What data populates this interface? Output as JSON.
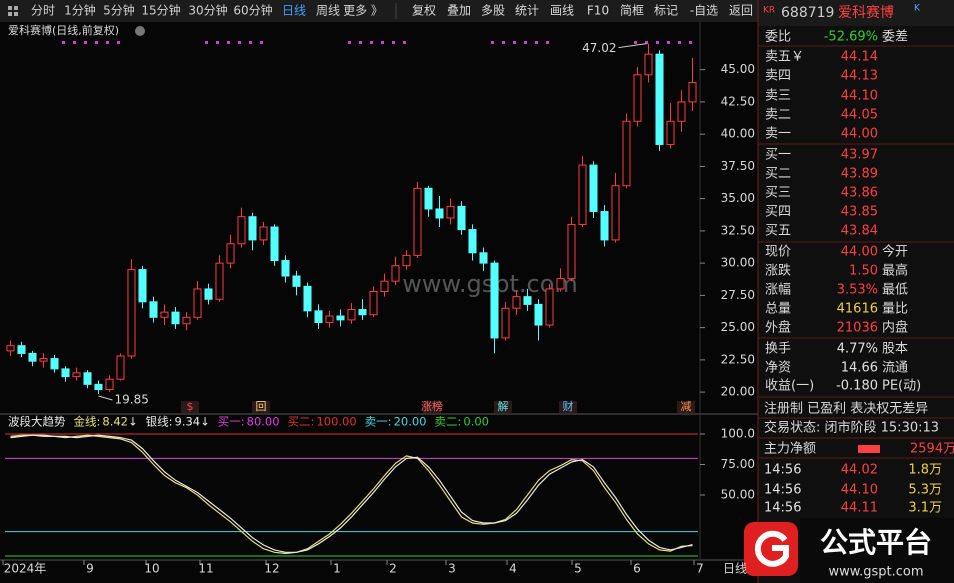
{
  "toolbar": {
    "periods": [
      "分时",
      "1分钟",
      "5分钟",
      "15分钟",
      "30分钟",
      "60分钟",
      "日线",
      "周线",
      "更多 》"
    ],
    "tools": [
      "复权",
      "叠加",
      "多股",
      "统计",
      "画线",
      "F10",
      "简框",
      "标记",
      "-自选",
      "返回"
    ]
  },
  "chart_data": [
    {
      "type": "candlestick",
      "title": "爱科赛博(日线,前复权)",
      "watermark": "www.gspt.com",
      "up_color": "#ff3c3c",
      "down_color": "#54ffff",
      "ohlc": [
        [
          23.2,
          23.6,
          22.8,
          24.0
        ],
        [
          23.6,
          23.0,
          22.7,
          23.9
        ],
        [
          23.0,
          22.4,
          22.0,
          23.2
        ],
        [
          22.4,
          22.6,
          21.9,
          23.0
        ],
        [
          22.6,
          21.8,
          21.5,
          22.9
        ],
        [
          21.8,
          21.2,
          20.8,
          22.0
        ],
        [
          21.2,
          21.5,
          20.9,
          21.9
        ],
        [
          21.5,
          20.6,
          20.3,
          21.7
        ],
        [
          20.6,
          20.2,
          19.85,
          20.9
        ],
        [
          20.2,
          21.0,
          20.0,
          21.3
        ],
        [
          21.0,
          22.8,
          20.9,
          23.0
        ],
        [
          22.8,
          29.5,
          22.6,
          30.3
        ],
        [
          29.5,
          27.0,
          26.5,
          29.8
        ],
        [
          27.0,
          25.8,
          25.4,
          27.4
        ],
        [
          25.8,
          26.2,
          25.2,
          26.8
        ],
        [
          26.2,
          25.3,
          24.9,
          26.6
        ],
        [
          25.3,
          25.8,
          24.8,
          26.2
        ],
        [
          25.8,
          28.0,
          25.6,
          28.6
        ],
        [
          28.0,
          27.2,
          26.8,
          28.4
        ],
        [
          27.2,
          30.0,
          27.0,
          30.6
        ],
        [
          30.0,
          31.5,
          29.6,
          32.2
        ],
        [
          31.5,
          33.6,
          31.2,
          34.3
        ],
        [
          33.6,
          31.8,
          31.0,
          33.9
        ],
        [
          31.8,
          32.8,
          31.4,
          33.2
        ],
        [
          32.8,
          30.2,
          29.8,
          33.0
        ],
        [
          30.2,
          29.0,
          28.5,
          30.6
        ],
        [
          29.0,
          28.2,
          27.5,
          29.4
        ],
        [
          28.2,
          26.3,
          25.8,
          28.5
        ],
        [
          26.3,
          25.4,
          24.9,
          26.8
        ],
        [
          25.4,
          25.9,
          25.0,
          26.3
        ],
        [
          25.9,
          25.6,
          25.1,
          26.4
        ],
        [
          25.6,
          26.4,
          25.3,
          26.9
        ],
        [
          26.4,
          26.0,
          25.6,
          27.2
        ],
        [
          26.0,
          27.8,
          25.8,
          28.2
        ],
        [
          27.8,
          28.6,
          27.4,
          29.2
        ],
        [
          28.6,
          29.8,
          28.3,
          30.5
        ],
        [
          29.8,
          30.6,
          29.5,
          31.0
        ],
        [
          30.6,
          35.8,
          30.4,
          36.3
        ],
        [
          35.8,
          34.2,
          33.6,
          36.0
        ],
        [
          34.2,
          33.5,
          32.8,
          35.2
        ],
        [
          33.5,
          34.4,
          33.0,
          35.0
        ],
        [
          34.4,
          32.6,
          32.2,
          34.8
        ],
        [
          32.6,
          30.8,
          30.2,
          33.0
        ],
        [
          30.8,
          30.0,
          29.4,
          31.2
        ],
        [
          30.0,
          24.2,
          23.0,
          30.2
        ],
        [
          24.2,
          26.5,
          24.0,
          27.0
        ],
        [
          26.5,
          27.4,
          26.0,
          27.9
        ],
        [
          27.4,
          26.8,
          26.3,
          28.0
        ],
        [
          26.8,
          25.2,
          24.0,
          27.2
        ],
        [
          25.2,
          28.0,
          25.0,
          28.4
        ],
        [
          28.0,
          28.8,
          27.8,
          29.6
        ],
        [
          28.8,
          33.0,
          28.6,
          33.6
        ],
        [
          33.0,
          37.6,
          32.8,
          38.3
        ],
        [
          37.6,
          34.0,
          33.5,
          37.9
        ],
        [
          34.0,
          31.8,
          31.3,
          34.5
        ],
        [
          31.8,
          36.0,
          31.6,
          37.0
        ],
        [
          36.0,
          41.0,
          35.8,
          41.6
        ],
        [
          41.0,
          44.6,
          40.6,
          45.2
        ],
        [
          44.6,
          46.2,
          44.0,
          47.02
        ],
        [
          46.2,
          39.2,
          38.7,
          46.5
        ],
        [
          39.2,
          41.0,
          38.9,
          42.4
        ],
        [
          41.0,
          42.5,
          40.2,
          43.4
        ],
        [
          42.5,
          44.0,
          41.8,
          45.9
        ]
      ],
      "ylim": [
        19,
        47.3
      ],
      "yticks": [
        {
          "value": 45,
          "label": "45.00"
        },
        {
          "value": 42.5,
          "label": "42.50"
        },
        {
          "value": 40,
          "label": "40.00"
        },
        {
          "value": 37.5,
          "label": "37.50"
        },
        {
          "value": 35,
          "label": "35.00"
        },
        {
          "value": 32.5,
          "label": "32.50"
        },
        {
          "value": 30,
          "label": "30.00"
        },
        {
          "value": 27.5,
          "label": "27.50"
        },
        {
          "value": 25,
          "label": "25.00"
        },
        {
          "value": 22.5,
          "label": "22.50"
        },
        {
          "value": 20,
          "label": "20.00"
        }
      ],
      "high_label": {
        "value": 47.02,
        "label": "47.02"
      },
      "low_label": {
        "value": 19.85,
        "label": "19.85"
      },
      "events": [
        "$",
        "回",
        "涨榜",
        "解",
        "财",
        "减"
      ]
    },
    {
      "type": "line",
      "title": "波段大趋势",
      "series": [
        {
          "name": "金线:",
          "color": "#e8e070",
          "value_label": "8.42",
          "trend": "↓",
          "values": [
            98,
            99,
            99,
            98,
            98,
            97,
            98,
            99,
            98,
            97,
            96,
            93,
            85,
            75,
            66,
            60,
            56,
            50,
            42,
            35,
            28,
            20,
            12,
            6,
            3,
            2,
            3,
            6,
            12,
            18,
            26,
            35,
            45,
            55,
            66,
            76,
            82,
            80,
            70,
            58,
            45,
            32,
            27,
            26,
            27,
            30,
            38,
            50,
            62,
            70,
            74,
            79,
            78,
            70,
            56,
            44,
            30,
            18,
            10,
            5,
            4,
            8,
            8.42
          ]
        },
        {
          "name": "银线:",
          "color": "#e8e8e8",
          "value_label": "9.34",
          "trend": "↓",
          "values": [
            97,
            98,
            99,
            99,
            98,
            98,
            97,
            98,
            99,
            98,
            97,
            95,
            88,
            78,
            69,
            62,
            57,
            52,
            45,
            38,
            31,
            23,
            15,
            9,
            5,
            3,
            3,
            5,
            10,
            16,
            23,
            32,
            42,
            52,
            63,
            73,
            80,
            81,
            73,
            62,
            49,
            36,
            29,
            27,
            27,
            29,
            35,
            46,
            58,
            67,
            72,
            77,
            79,
            73,
            60,
            48,
            34,
            22,
            13,
            7,
            5,
            7,
            9.34
          ]
        }
      ],
      "levels": [
        {
          "name": "买一:",
          "value": 80,
          "label": "80.00",
          "color": "#e040e0"
        },
        {
          "name": "买二:",
          "value": 100,
          "label": "100.00",
          "color": "#e03030"
        },
        {
          "name": "卖一:",
          "value": 20,
          "label": "20.00",
          "color": "#40d8e0"
        },
        {
          "name": "卖二:",
          "value": 0,
          "label": "0.00",
          "color": "#30d030"
        }
      ],
      "ylim": [
        -3.3,
        104.9
      ],
      "yticks": [
        {
          "value": 100,
          "label": "100.0"
        },
        {
          "value": 75,
          "label": "75.00"
        },
        {
          "value": 50,
          "label": "50.00"
        }
      ],
      "x_labels": [
        "2024年",
        "9",
        "10",
        "11",
        "12",
        "1",
        "2",
        "3",
        "4",
        "5",
        "6",
        "7"
      ],
      "x_axis_name": "日线"
    }
  ],
  "right_panel": {
    "market": "KR",
    "code": "688719",
    "name": "爱科赛博",
    "badge": "K",
    "rows": [
      {
        "label": "委比",
        "value": "-52.69%",
        "right": "委差",
        "color": "#30d030"
      },
      {
        "label": "卖五￥",
        "value": "44.14",
        "color": "#ff4040"
      },
      {
        "label": "卖四",
        "value": "44.13",
        "color": "#ff4040"
      },
      {
        "label": "卖三",
        "value": "44.10",
        "color": "#ff4040"
      },
      {
        "label": "卖二",
        "value": "44.05",
        "color": "#ff4040"
      },
      {
        "label": "卖一",
        "value": "44.00",
        "color": "#ff4040"
      },
      {
        "label": "买一",
        "value": "43.97",
        "color": "#ff4040"
      },
      {
        "label": "买二",
        "value": "43.89",
        "color": "#ff4040"
      },
      {
        "label": "买三",
        "value": "43.86",
        "color": "#ff4040"
      },
      {
        "label": "买四",
        "value": "43.85",
        "color": "#ff4040"
      },
      {
        "label": "买五",
        "value": "43.84",
        "color": "#ff4040"
      },
      {
        "label": "现价",
        "value": "44.00",
        "right": "今开",
        "color": "#ff4040"
      },
      {
        "label": "涨跌",
        "value": "1.50",
        "right": "最高",
        "color": "#ff4040"
      },
      {
        "label": "涨幅",
        "value": "3.53%",
        "right": "最低",
        "color": "#ff4040"
      },
      {
        "label": "总量",
        "value": "41616",
        "right": "量比",
        "color": "#f0d040"
      },
      {
        "label": "外盘",
        "value": "21036",
        "right": "内盘",
        "color": "#ff4040"
      },
      {
        "label": "换手",
        "value": "4.77%",
        "right": "股本",
        "color": "#e0e0e0"
      },
      {
        "label": "净资",
        "value": "14.66",
        "right": "流通",
        "color": "#e0e0e0"
      },
      {
        "label": "收益(一)",
        "value": "-0.180",
        "right": "PE(动)",
        "color": "#e0e0e0"
      }
    ],
    "status_flags": "注册制 已盈利 表决权无差异",
    "trade_status": "交易状态: 闭市阶段 15:30:13",
    "main_flow_label": "主力净额",
    "main_flow_value": "2594万",
    "ticks": [
      [
        "14:56",
        "44.02",
        "1.8万"
      ],
      [
        "14:56",
        "44.10",
        "5.3万"
      ],
      [
        "14:56",
        "44.11",
        "3.1万"
      ]
    ]
  },
  "logo": {
    "title": "公式平台",
    "url": "www.gspt.com"
  }
}
